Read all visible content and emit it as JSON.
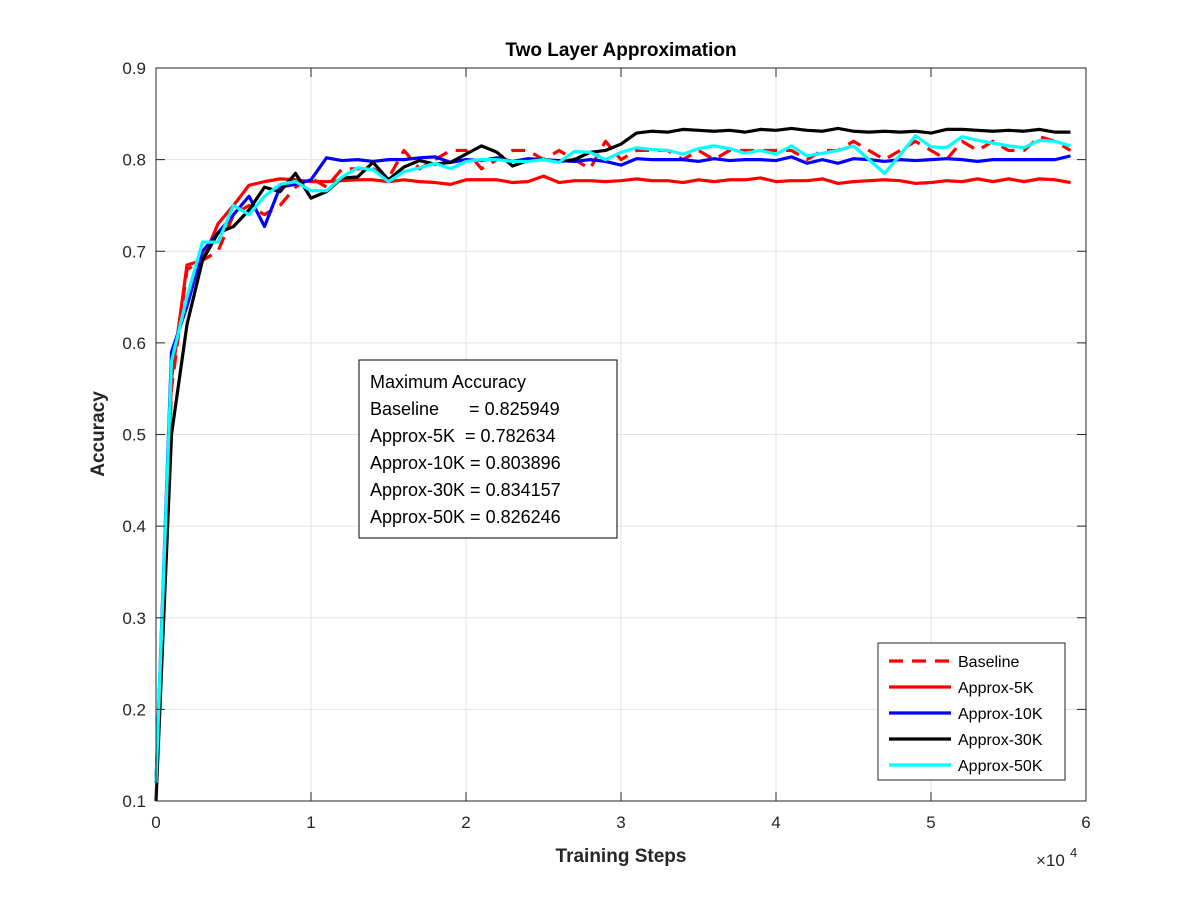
{
  "chart_data": {
    "type": "line",
    "title": "Two Layer Approximation",
    "xlabel": "Training Steps",
    "ylabel": "Accuracy",
    "x_multiplier_label": "×10",
    "x_multiplier_exponent": "4",
    "xlim": [
      0,
      6
    ],
    "ylim": [
      0.1,
      0.9
    ],
    "xticks": [
      0,
      1,
      2,
      3,
      4,
      5,
      6
    ],
    "xtick_labels": [
      "0",
      "1",
      "2",
      "3",
      "4",
      "5",
      "6"
    ],
    "yticks": [
      0.1,
      0.2,
      0.3,
      0.4,
      0.5,
      0.6,
      0.7,
      0.8,
      0.9
    ],
    "ytick_labels": [
      "0.1",
      "0.2",
      "0.3",
      "0.4",
      "0.5",
      "0.6",
      "0.7",
      "0.8",
      "0.9"
    ],
    "grid": true,
    "legend_position": "bottom-right",
    "x": [
      0,
      0.1,
      0.2,
      0.3,
      0.4,
      0.5,
      0.6,
      0.7,
      0.8,
      0.9,
      1.0,
      1.1,
      1.2,
      1.3,
      1.4,
      1.5,
      1.6,
      1.7,
      1.8,
      1.9,
      2.0,
      2.1,
      2.2,
      2.3,
      2.4,
      2.5,
      2.6,
      2.7,
      2.8,
      2.9,
      3.0,
      3.1,
      3.2,
      3.3,
      3.4,
      3.5,
      3.6,
      3.7,
      3.8,
      3.9,
      4.0,
      4.1,
      4.2,
      4.3,
      4.4,
      4.5,
      4.6,
      4.7,
      4.8,
      4.9,
      5.0,
      5.1,
      5.2,
      5.3,
      5.4,
      5.5,
      5.6,
      5.7,
      5.8,
      5.9
    ],
    "series": [
      {
        "name": "Baseline",
        "color": "#ff0000",
        "dashed": true,
        "values": [
          0.12,
          0.55,
          0.68,
          0.69,
          0.7,
          0.74,
          0.75,
          0.74,
          0.75,
          0.77,
          0.78,
          0.77,
          0.79,
          0.79,
          0.79,
          0.78,
          0.81,
          0.79,
          0.8,
          0.81,
          0.81,
          0.79,
          0.8,
          0.81,
          0.81,
          0.8,
          0.81,
          0.8,
          0.79,
          0.82,
          0.8,
          0.81,
          0.81,
          0.81,
          0.8,
          0.81,
          0.8,
          0.81,
          0.81,
          0.81,
          0.81,
          0.81,
          0.8,
          0.81,
          0.81,
          0.82,
          0.81,
          0.8,
          0.81,
          0.82,
          0.81,
          0.8,
          0.82,
          0.81,
          0.82,
          0.81,
          0.81,
          0.825,
          0.82,
          0.81
        ]
      },
      {
        "name": "Approx-5K",
        "color": "#ff0000",
        "dashed": false,
        "values": [
          0.12,
          0.56,
          0.685,
          0.69,
          0.73,
          0.75,
          0.772,
          0.776,
          0.779,
          0.778,
          0.776,
          0.776,
          0.777,
          0.778,
          0.778,
          0.776,
          0.778,
          0.776,
          0.775,
          0.773,
          0.778,
          0.778,
          0.778,
          0.775,
          0.776,
          0.782,
          0.775,
          0.777,
          0.777,
          0.776,
          0.777,
          0.779,
          0.777,
          0.777,
          0.775,
          0.778,
          0.776,
          0.778,
          0.778,
          0.78,
          0.776,
          0.777,
          0.777,
          0.779,
          0.774,
          0.776,
          0.777,
          0.778,
          0.777,
          0.774,
          0.775,
          0.777,
          0.776,
          0.779,
          0.776,
          0.779,
          0.776,
          0.779,
          0.778,
          0.775
        ]
      },
      {
        "name": "Approx-10K",
        "color": "#0000ff",
        "dashed": false,
        "values": [
          0.12,
          0.59,
          0.64,
          0.7,
          0.72,
          0.74,
          0.76,
          0.727,
          0.77,
          0.773,
          0.778,
          0.802,
          0.799,
          0.8,
          0.798,
          0.8,
          0.8,
          0.802,
          0.803,
          0.797,
          0.8,
          0.799,
          0.802,
          0.798,
          0.801,
          0.8,
          0.799,
          0.798,
          0.8,
          0.798,
          0.794,
          0.801,
          0.8,
          0.8,
          0.8,
          0.798,
          0.801,
          0.799,
          0.8,
          0.8,
          0.799,
          0.803,
          0.796,
          0.8,
          0.796,
          0.801,
          0.8,
          0.798,
          0.8,
          0.799,
          0.8,
          0.801,
          0.8,
          0.798,
          0.8,
          0.8,
          0.8,
          0.8,
          0.8,
          0.804
        ]
      },
      {
        "name": "Approx-30K",
        "color": "#000000",
        "dashed": false,
        "values": [
          0.1,
          0.5,
          0.62,
          0.69,
          0.72,
          0.727,
          0.745,
          0.77,
          0.765,
          0.785,
          0.758,
          0.765,
          0.78,
          0.781,
          0.797,
          0.778,
          0.792,
          0.799,
          0.795,
          0.797,
          0.806,
          0.815,
          0.808,
          0.793,
          0.799,
          0.8,
          0.798,
          0.8,
          0.808,
          0.81,
          0.817,
          0.829,
          0.831,
          0.83,
          0.833,
          0.832,
          0.831,
          0.832,
          0.83,
          0.833,
          0.832,
          0.834,
          0.832,
          0.831,
          0.834,
          0.831,
          0.83,
          0.831,
          0.83,
          0.831,
          0.829,
          0.833,
          0.833,
          0.832,
          0.831,
          0.832,
          0.831,
          0.833,
          0.83,
          0.83
        ]
      },
      {
        "name": "Approx-50K",
        "color": "#00ffff",
        "dashed": false,
        "values": [
          0.12,
          0.58,
          0.65,
          0.71,
          0.71,
          0.75,
          0.74,
          0.76,
          0.773,
          0.776,
          0.766,
          0.766,
          0.781,
          0.791,
          0.789,
          0.776,
          0.787,
          0.791,
          0.796,
          0.79,
          0.798,
          0.8,
          0.8,
          0.798,
          0.798,
          0.8,
          0.797,
          0.809,
          0.808,
          0.8,
          0.808,
          0.813,
          0.811,
          0.81,
          0.806,
          0.812,
          0.815,
          0.812,
          0.807,
          0.81,
          0.806,
          0.815,
          0.804,
          0.807,
          0.81,
          0.815,
          0.8,
          0.785,
          0.805,
          0.826,
          0.814,
          0.813,
          0.825,
          0.821,
          0.818,
          0.815,
          0.813,
          0.821,
          0.82,
          0.815
        ]
      }
    ],
    "annotation": {
      "lines": [
        "Maximum Accuracy",
        "Baseline      = 0.825949",
        "Approx-5K  = 0.782634",
        "Approx-10K = 0.803896",
        "Approx-30K = 0.834157",
        "Approx-50K = 0.826246"
      ]
    }
  }
}
